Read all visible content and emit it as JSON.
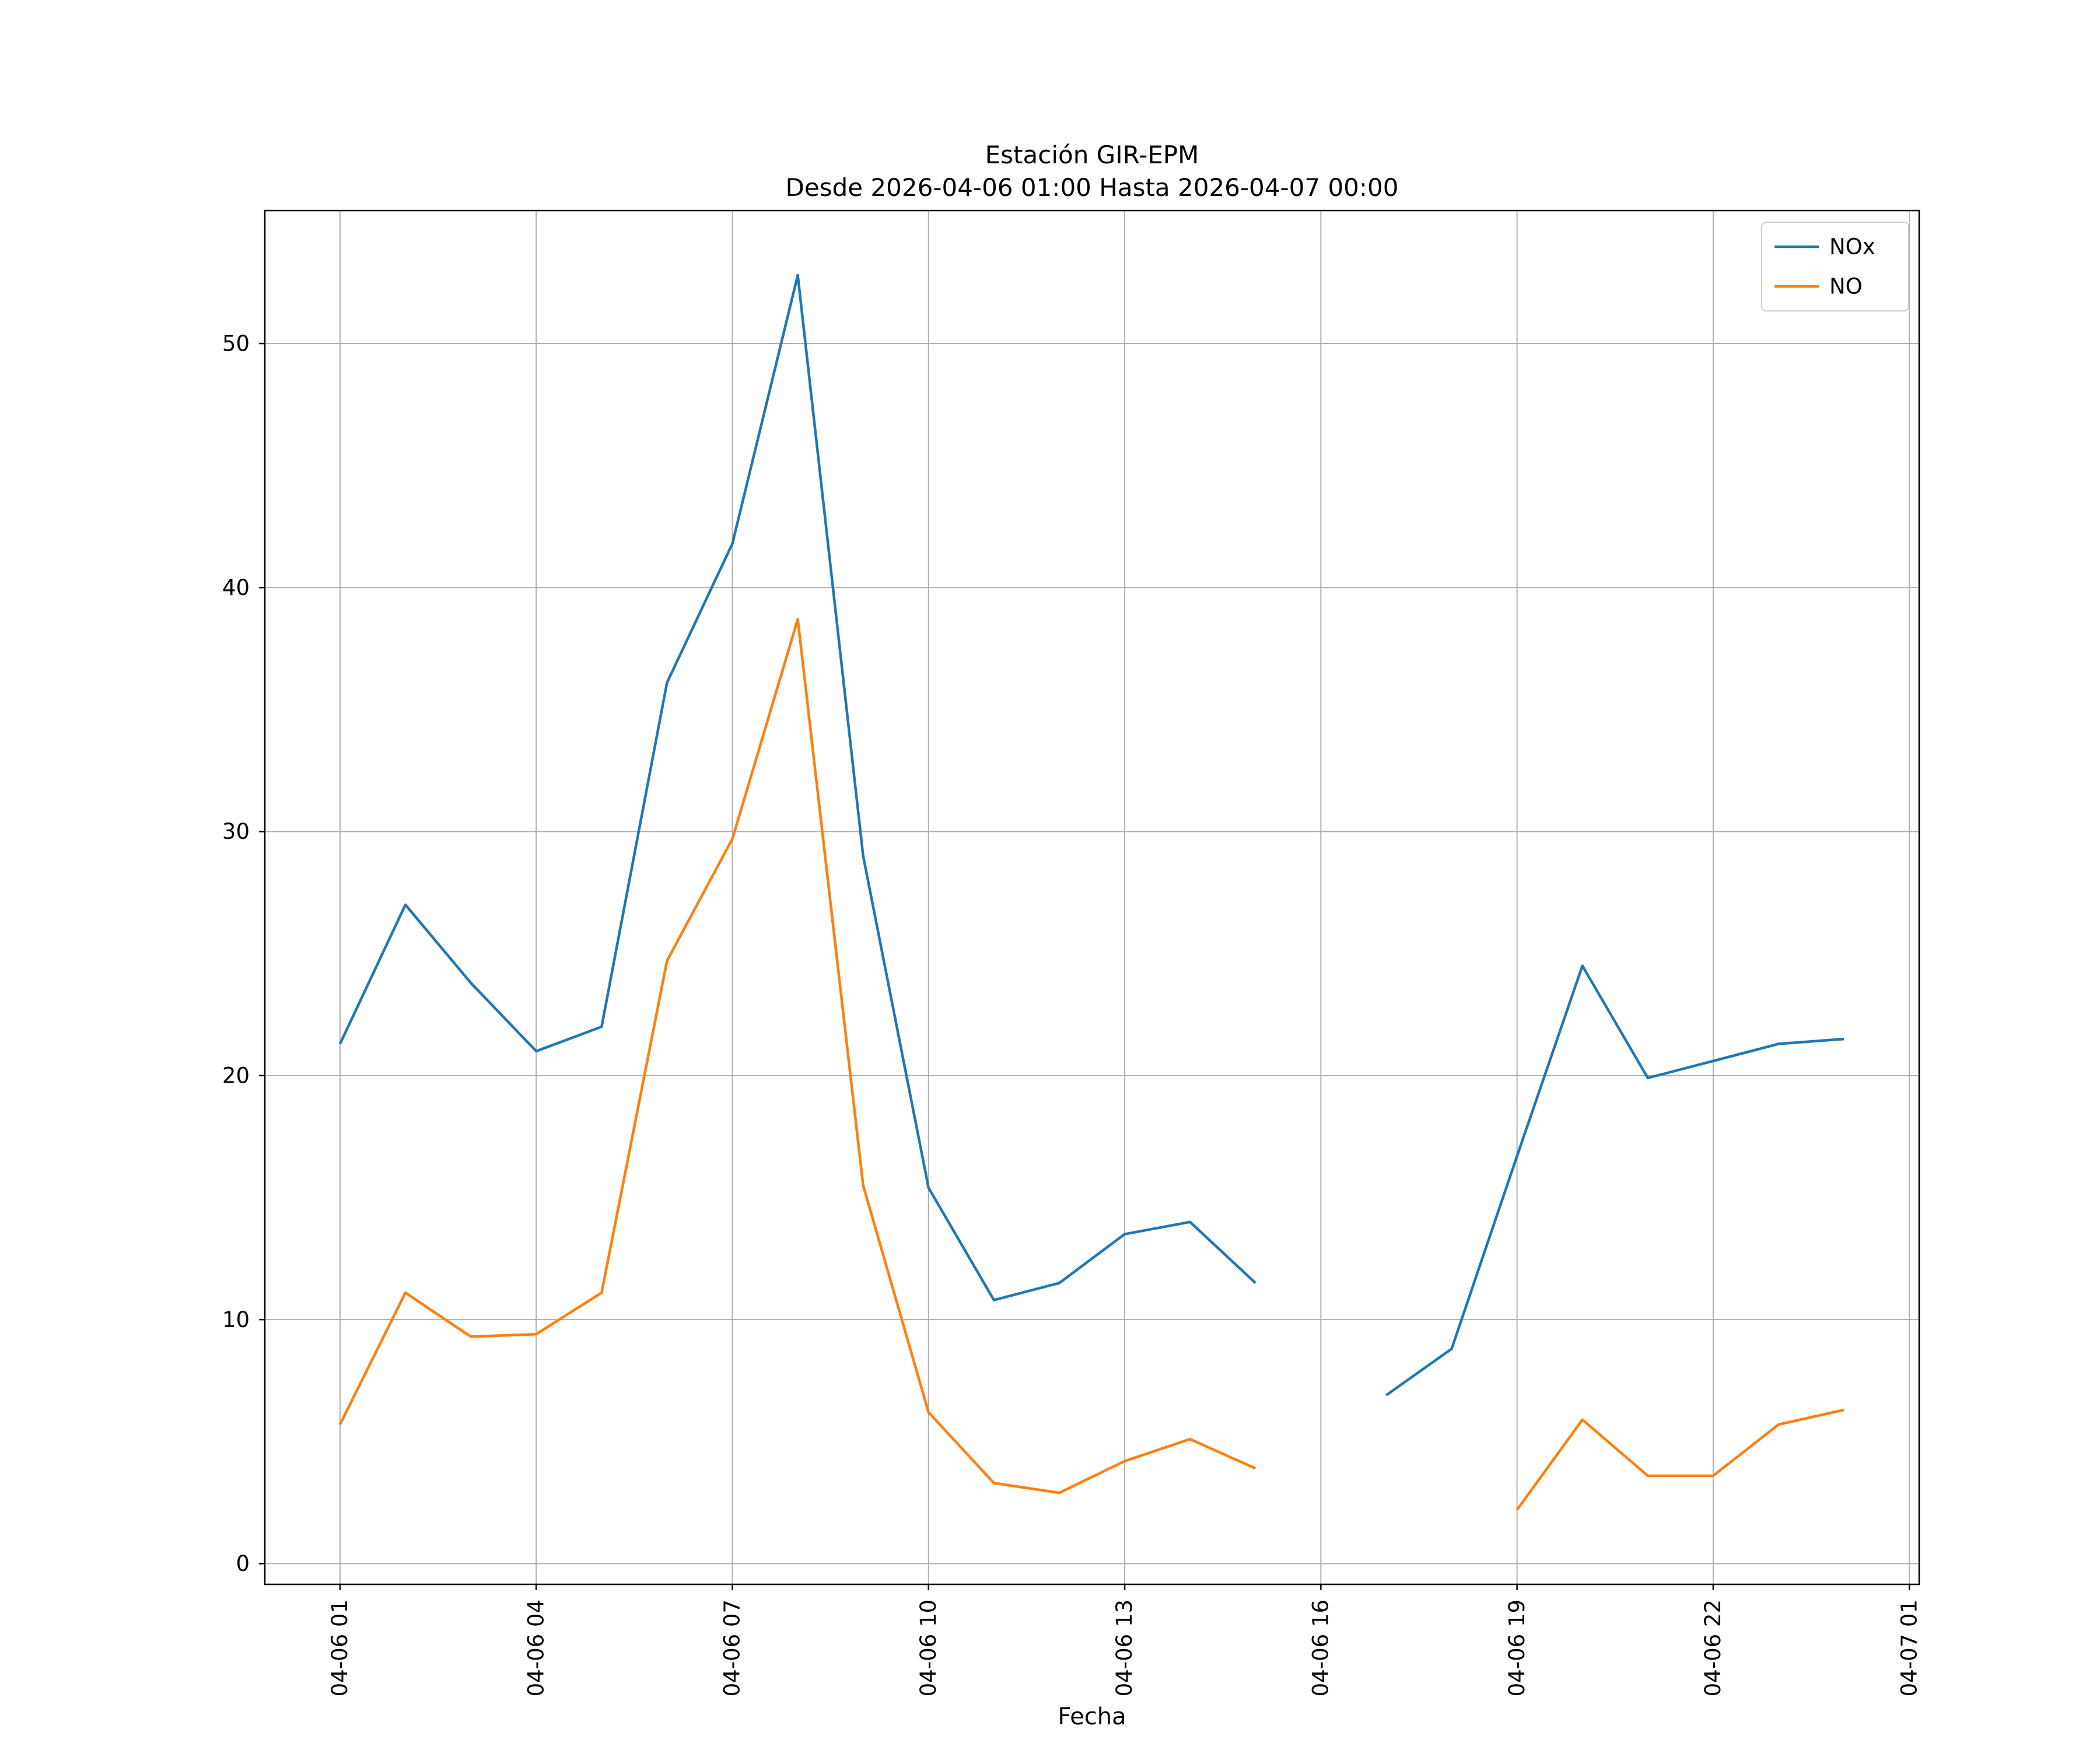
{
  "chart_data": {
    "type": "line",
    "title": "Estación GIR-EPM",
    "subtitle": "Desde 2026-04-06 01:00 Hasta 2026-04-07 00:00",
    "xlabel": "Fecha",
    "ylabel": "",
    "grid": true,
    "legend_position": "upper right",
    "background_color": "#ffffff",
    "grid_color": "#b0b0b0",
    "spine_color": "#000000",
    "legend_border_color": "#cccccc",
    "x_hours": [
      1,
      2,
      3,
      4,
      5,
      6,
      7,
      8,
      9,
      10,
      11,
      12,
      13,
      14,
      15,
      16,
      17,
      18,
      19,
      20,
      21,
      22,
      23,
      24
    ],
    "series": [
      {
        "name": "NOx",
        "color": "#1f77b4",
        "values": [
          21.3,
          27.0,
          23.8,
          21.0,
          22.0,
          36.1,
          41.8,
          52.8,
          29.0,
          15.4,
          10.8,
          11.5,
          13.5,
          14.0,
          11.5,
          null,
          6.9,
          8.8,
          16.7,
          24.5,
          19.9,
          20.6,
          21.3,
          21.5
        ]
      },
      {
        "name": "NO",
        "color": "#ff7f0e",
        "values": [
          5.7,
          11.1,
          9.3,
          9.4,
          11.1,
          24.7,
          29.7,
          38.7,
          15.5,
          6.2,
          3.3,
          2.9,
          4.2,
          5.1,
          3.9,
          null,
          null,
          null,
          2.2,
          5.9,
          3.6,
          3.6,
          5.7,
          6.3
        ]
      }
    ],
    "xticks": {
      "values": [
        1,
        4,
        7,
        10,
        13,
        16,
        19,
        22,
        25
      ],
      "labels": [
        "04-06 01",
        "04-06 04",
        "04-06 07",
        "04-06 10",
        "04-06 13",
        "04-06 16",
        "04-06 19",
        "04-06 22",
        "04-07 01"
      ]
    },
    "yticks": [
      0,
      10,
      20,
      30,
      40,
      50
    ],
    "xlim": [
      -0.15,
      25.15
    ],
    "ylim": [
      -0.85,
      55.45
    ]
  }
}
